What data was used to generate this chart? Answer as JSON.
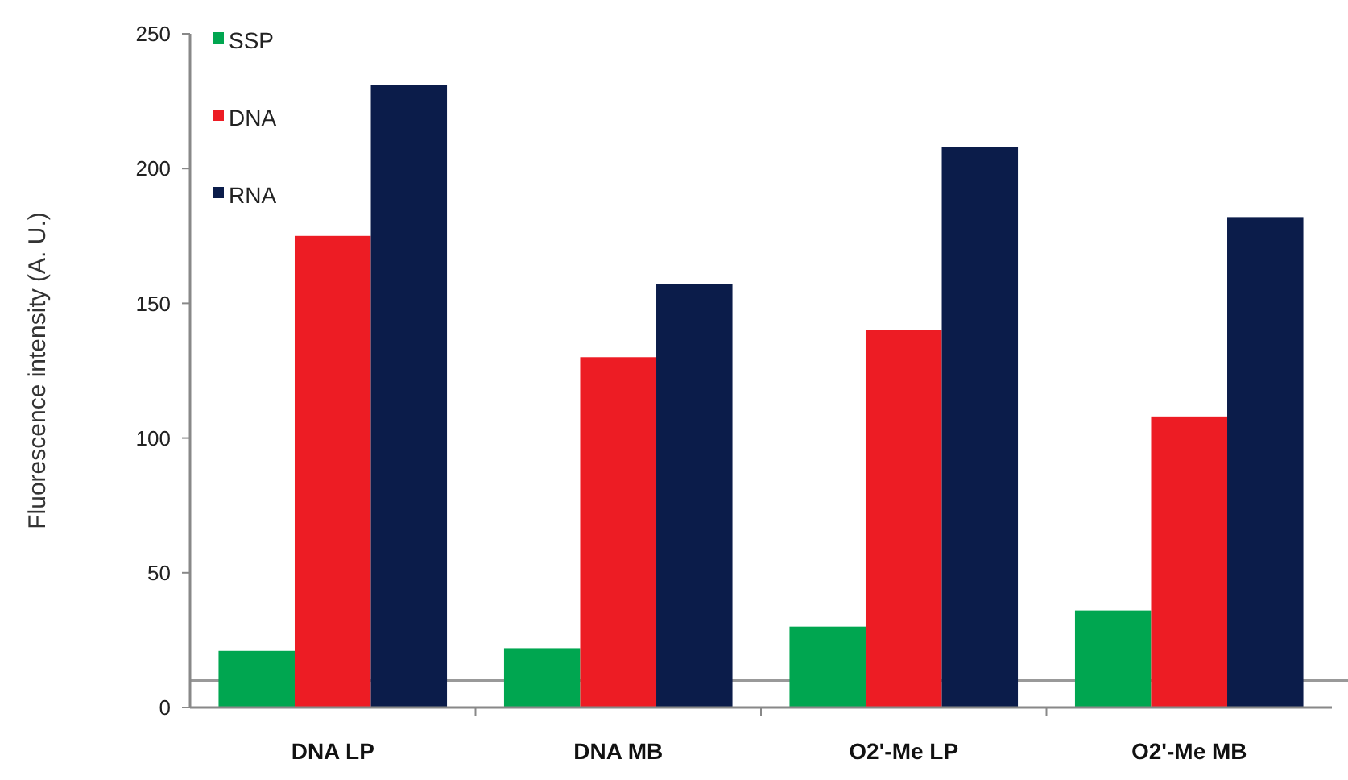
{
  "chart_data": {
    "type": "bar",
    "ylabel": "Fluorescence intensity (A. U.)",
    "categories": [
      "DNA LP",
      "DNA MB",
      "O2'-Me LP",
      "O2'-Me MB"
    ],
    "series": [
      {
        "name": "SSP",
        "color": "#00a650",
        "values": [
          21,
          22,
          30,
          36
        ]
      },
      {
        "name": "DNA",
        "color": "#ed1c24",
        "values": [
          175,
          130,
          140,
          108
        ]
      },
      {
        "name": "RNA",
        "color": "#0b1c4a",
        "values": [
          231,
          157,
          208,
          182
        ]
      }
    ],
    "ylim": [
      0,
      250
    ],
    "yticks": [
      0,
      50,
      100,
      150,
      200,
      250
    ],
    "ref_lines": [
      {
        "axis": "y",
        "value": 10,
        "color": "#999999"
      }
    ],
    "legend": "top left",
    "grid": false
  }
}
